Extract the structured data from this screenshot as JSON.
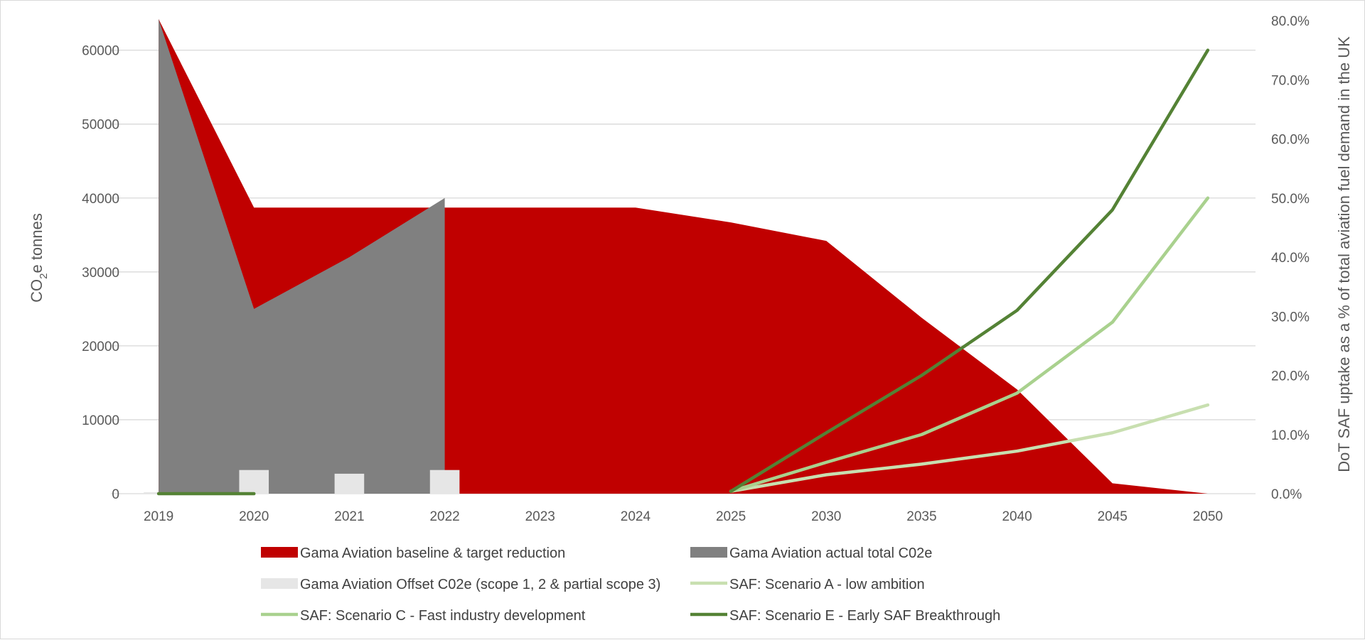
{
  "chart_data": {
    "type": "area",
    "categories": [
      "2019",
      "2020",
      "2021",
      "2022",
      "2023",
      "2024",
      "2025",
      "2030",
      "2035",
      "2040",
      "2045",
      "2050"
    ],
    "y_left": {
      "label": "CO",
      "label_sub": "2",
      "label_suffix": "e tonnes",
      "range": [
        0,
        64000
      ],
      "ticks": [
        0,
        10000,
        20000,
        30000,
        40000,
        50000,
        60000
      ],
      "tick_labels": [
        "0",
        "10000",
        "20000",
        "30000",
        "40000",
        "50000",
        "60000"
      ]
    },
    "y_right": {
      "label": "DoT SAF uptake as a % of total aviation fuel demand in the UK",
      "range": [
        0,
        80
      ],
      "ticks": [
        0,
        10,
        20,
        30,
        40,
        50,
        60,
        70,
        80
      ],
      "tick_labels": [
        "0.0%",
        "10.0%",
        "20.0%",
        "30.0%",
        "40.0%",
        "50.0%",
        "60.0%",
        "70.0%",
        "80.0%"
      ]
    },
    "grid": true,
    "legend_position": "bottom",
    "series": [
      {
        "name": "Gama Aviation baseline & target reduction",
        "type": "area",
        "axis": "left",
        "color": "#c00000",
        "values": [
          64200,
          38700,
          38700,
          38700,
          38700,
          38700,
          36700,
          34200,
          23800,
          14100,
          1400,
          0
        ]
      },
      {
        "name": "Gama Aviation actual total C02e",
        "type": "area",
        "axis": "left",
        "color": "#808080",
        "values": [
          64200,
          25000,
          32000,
          40000,
          null,
          null,
          null,
          null,
          null,
          null,
          null,
          null
        ]
      },
      {
        "name": "Gama Aviation Offset C02e (scope 1, 2 & partial scope 3)",
        "type": "bar",
        "axis": "left",
        "color": "#e6e6e6",
        "values": [
          200,
          3200,
          2700,
          3200,
          null,
          null,
          null,
          null,
          null,
          null,
          null,
          null
        ]
      },
      {
        "name": "SAF: Scenario A - low ambition",
        "type": "line",
        "axis": "right",
        "color": "#c8dfb0",
        "values": [
          null,
          null,
          null,
          null,
          null,
          null,
          0.4,
          3.2,
          5.0,
          7.2,
          10.3,
          15.0
        ]
      },
      {
        "name": "SAF: Scenario C - Fast industry development",
        "type": "line",
        "axis": "right",
        "color": "#a9d18e",
        "values": [
          null,
          null,
          null,
          null,
          null,
          null,
          0.4,
          5.3,
          10.0,
          17.0,
          29.0,
          50.0
        ]
      },
      {
        "name": "SAF: Scenario E - Early SAF Breakthrough",
        "type": "line",
        "axis": "right",
        "color": "#548235",
        "values": [
          0,
          0,
          null,
          null,
          null,
          null,
          0.4,
          10.3,
          20.0,
          31.0,
          48.0,
          75.0
        ]
      }
    ]
  }
}
